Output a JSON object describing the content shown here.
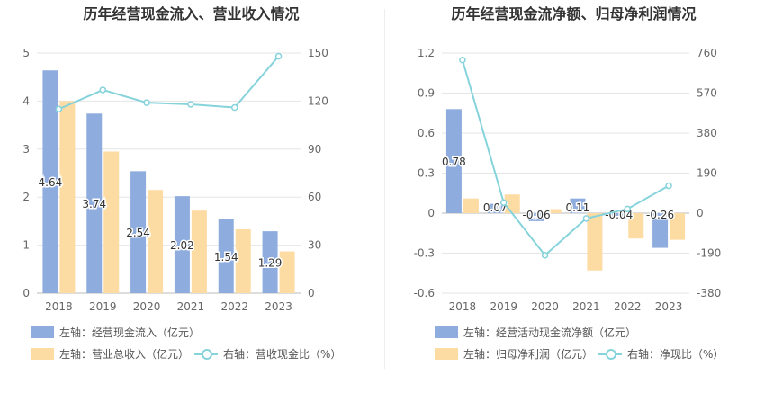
{
  "chart_data": [
    {
      "type": "bar",
      "title": "历年经营现金流入、营业收入情况",
      "categories": [
        "2018",
        "2019",
        "2020",
        "2021",
        "2022",
        "2023"
      ],
      "left_axis": {
        "min": 0,
        "max": 5,
        "ticks": [
          "0",
          "1",
          "2",
          "3",
          "4",
          "5"
        ]
      },
      "right_axis": {
        "min": 0,
        "max": 150,
        "ticks": [
          "0",
          "30",
          "60",
          "90",
          "120",
          "150"
        ]
      },
      "series": [
        {
          "name": "左轴：经营现金流入（亿元）",
          "axis": "left",
          "kind": "bar",
          "color": "#8eadde",
          "values": [
            4.64,
            3.74,
            2.54,
            2.02,
            1.54,
            1.29
          ],
          "labels": [
            "4.64",
            "3.74",
            "2.54",
            "2.02",
            "1.54",
            "1.29"
          ]
        },
        {
          "name": "左轴：营业总收入（亿元）",
          "axis": "left",
          "kind": "bar",
          "color": "#fddca4",
          "values": [
            4.0,
            2.95,
            2.15,
            1.72,
            1.33,
            0.87
          ]
        },
        {
          "name": "右轴：营收现金比（%）",
          "axis": "right",
          "kind": "line",
          "color": "#86d3db",
          "values": [
            115,
            127,
            119,
            118,
            116,
            148
          ]
        }
      ],
      "legend": {
        "item1": "左轴：经营现金流入（亿元）",
        "item2": "左轴：营业总收入（亿元）",
        "item3": "右轴：营收现金比（%）"
      }
    },
    {
      "type": "bar",
      "title": "历年经营现金流净额、归母净利润情况",
      "categories": [
        "2018",
        "2019",
        "2020",
        "2021",
        "2022",
        "2023"
      ],
      "left_axis": {
        "min": -0.6,
        "max": 1.2,
        "ticks": [
          "-0.6",
          "-0.3",
          "0",
          "0.3",
          "0.6",
          "0.9",
          "1.2"
        ]
      },
      "right_axis": {
        "min": -380,
        "max": 760,
        "ticks": [
          "-380",
          "-190",
          "0",
          "190",
          "380",
          "570",
          "760"
        ]
      },
      "series": [
        {
          "name": "左轴：经营活动现金流净额（亿元）",
          "axis": "left",
          "kind": "bar",
          "color": "#8eadde",
          "values": [
            0.78,
            0.07,
            -0.06,
            0.11,
            -0.04,
            -0.26
          ],
          "labels": [
            "0.78",
            "0.07",
            "-0.06",
            "0.11",
            "-0.04",
            "-0.26"
          ]
        },
        {
          "name": "左轴：归母净利润（亿元）",
          "axis": "left",
          "kind": "bar",
          "color": "#fddca4",
          "values": [
            0.11,
            0.14,
            0.03,
            -0.43,
            -0.19,
            -0.2
          ]
        },
        {
          "name": "右轴：净现比（%）",
          "axis": "right",
          "kind": "line",
          "color": "#86d3db",
          "values": [
            727,
            50,
            -200,
            -25,
            20,
            130
          ]
        }
      ],
      "legend": {
        "item1": "左轴：经营活动现金流净额（亿元）",
        "item2": "左轴：归母净利润（亿元）",
        "item3": "右轴：净现比（%）"
      }
    }
  ]
}
